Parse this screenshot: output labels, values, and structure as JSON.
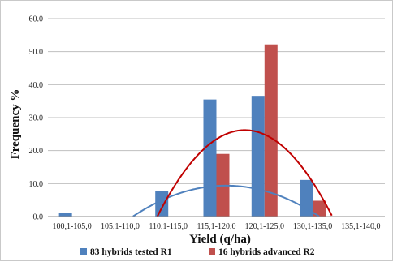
{
  "chart_data": {
    "type": "bar",
    "categories": [
      "100,1-105,0",
      "105,1-110,0",
      "110,1-115,0",
      "115,1-120,0",
      "120,1-125,0",
      "130,1-135,0",
      "135,1-140,0"
    ],
    "series": [
      {
        "name": "83 hybrids tested R1",
        "values": [
          1.2,
          0,
          7.8,
          35.5,
          36.6,
          11.1,
          0
        ],
        "color": "#4f81bd"
      },
      {
        "name": "16 hybrids advanced R2",
        "values": [
          0,
          0,
          0,
          19.0,
          52.2,
          4.8,
          0
        ],
        "color": "#c0504d"
      }
    ],
    "trendlines": [
      {
        "series": "83 hybrids tested R1",
        "color": "#4f81bd",
        "coeffs": [
          -34.71,
          21.0,
          -2.5
        ]
      },
      {
        "series": "16 hybrids advanced R2",
        "color": "#c00000",
        "coeffs": [
          -140.87,
          72.8,
          -7.93
        ]
      }
    ],
    "xlabel": "Yield (q/ha)",
    "ylabel": "Frequency %",
    "ylim": [
      0,
      60
    ],
    "yticks": [
      "0.0",
      "10.0",
      "20.0",
      "30.0",
      "40.0",
      "50.0",
      "60.0"
    ],
    "grid": true,
    "legend": "bottom"
  }
}
